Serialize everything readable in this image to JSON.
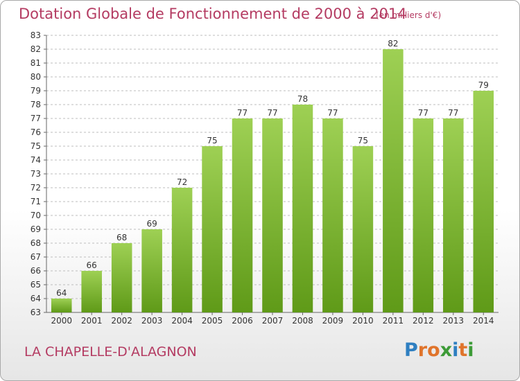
{
  "title": "Dotation Globale de Fonctionnement de 2000 à 2014",
  "unit_note": "(en milliers d'€)",
  "commune": "LA CHAPELLE-D'ALAGNON",
  "logo": {
    "text": "Proxiti",
    "letters": [
      "P",
      "r",
      "o",
      "x",
      "i",
      "t",
      "i"
    ],
    "colors": [
      "#2e7fc1",
      "#e0742b",
      "#e0742b",
      "#3d9b37",
      "#2e7fc1",
      "#e0742b",
      "#3d9b37"
    ]
  },
  "colors": {
    "bar_light": "#9ed054",
    "bar_dark": "#5f9a18",
    "title": "#b43b62",
    "grid": "#bdbdbd"
  },
  "chart_data": {
    "type": "bar",
    "categories": [
      "2000",
      "2001",
      "2002",
      "2003",
      "2004",
      "2005",
      "2006",
      "2007",
      "2008",
      "2009",
      "2010",
      "2011",
      "2012",
      "2013",
      "2014"
    ],
    "values": [
      64,
      66,
      68,
      69,
      72,
      75,
      77,
      77,
      78,
      77,
      75,
      82,
      77,
      77,
      79
    ],
    "title": "Dotation Globale de Fonctionnement de 2000 à 2014",
    "subtitle": "(en milliers d'€)",
    "ylim": [
      63,
      83
    ],
    "yticks": [
      63,
      64,
      65,
      66,
      67,
      68,
      69,
      70,
      71,
      72,
      73,
      74,
      75,
      76,
      77,
      78,
      79,
      80,
      81,
      82,
      83
    ],
    "grid": true,
    "data_labels": true
  }
}
